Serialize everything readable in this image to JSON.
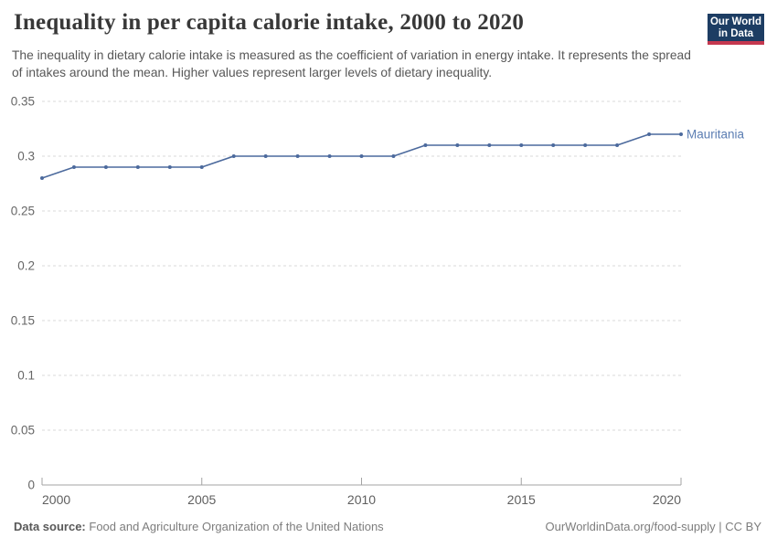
{
  "header": {
    "title": "Inequality in per capita calorie intake, 2000 to 2020",
    "subtitle": "The inequality in dietary calorie intake is measured as the coefficient of variation in energy intake. It represents the spread of intakes around the mean. Higher values represent larger levels of dietary inequality.",
    "logo": {
      "line1": "Our World",
      "line2": "in Data",
      "bg_color": "#1d3d63",
      "accent_color": "#c5384f"
    }
  },
  "chart_data": {
    "type": "line",
    "title": "Inequality in per capita calorie intake, 2000 to 2020",
    "x": [
      2000,
      2001,
      2002,
      2003,
      2004,
      2005,
      2006,
      2007,
      2008,
      2009,
      2010,
      2011,
      2012,
      2013,
      2014,
      2015,
      2016,
      2017,
      2018,
      2019,
      2020
    ],
    "series": [
      {
        "name": "Mauritania",
        "values": [
          0.28,
          0.29,
          0.29,
          0.29,
          0.29,
          0.29,
          0.3,
          0.3,
          0.3,
          0.3,
          0.3,
          0.3,
          0.31,
          0.31,
          0.31,
          0.31,
          0.31,
          0.31,
          0.31,
          0.32,
          0.32
        ],
        "color": "#4c6a9d",
        "label_color": "#5b7db2"
      }
    ],
    "x_ticks": [
      2000,
      2005,
      2010,
      2015,
      2020
    ],
    "y_ticks": [
      0,
      0.05,
      0.1,
      0.15,
      0.2,
      0.25,
      0.3,
      0.35
    ],
    "xlim": [
      2000,
      2020
    ],
    "ylim": [
      0,
      0.35
    ],
    "xlabel": "",
    "ylabel": "",
    "grid": "horizontal-dashed",
    "legend_position": "line-end-label"
  },
  "footer": {
    "source_label": "Data source:",
    "source_text": "Food and Agriculture Organization of the United Nations",
    "attribution": "OurWorldinData.org/food-supply | CC BY"
  }
}
